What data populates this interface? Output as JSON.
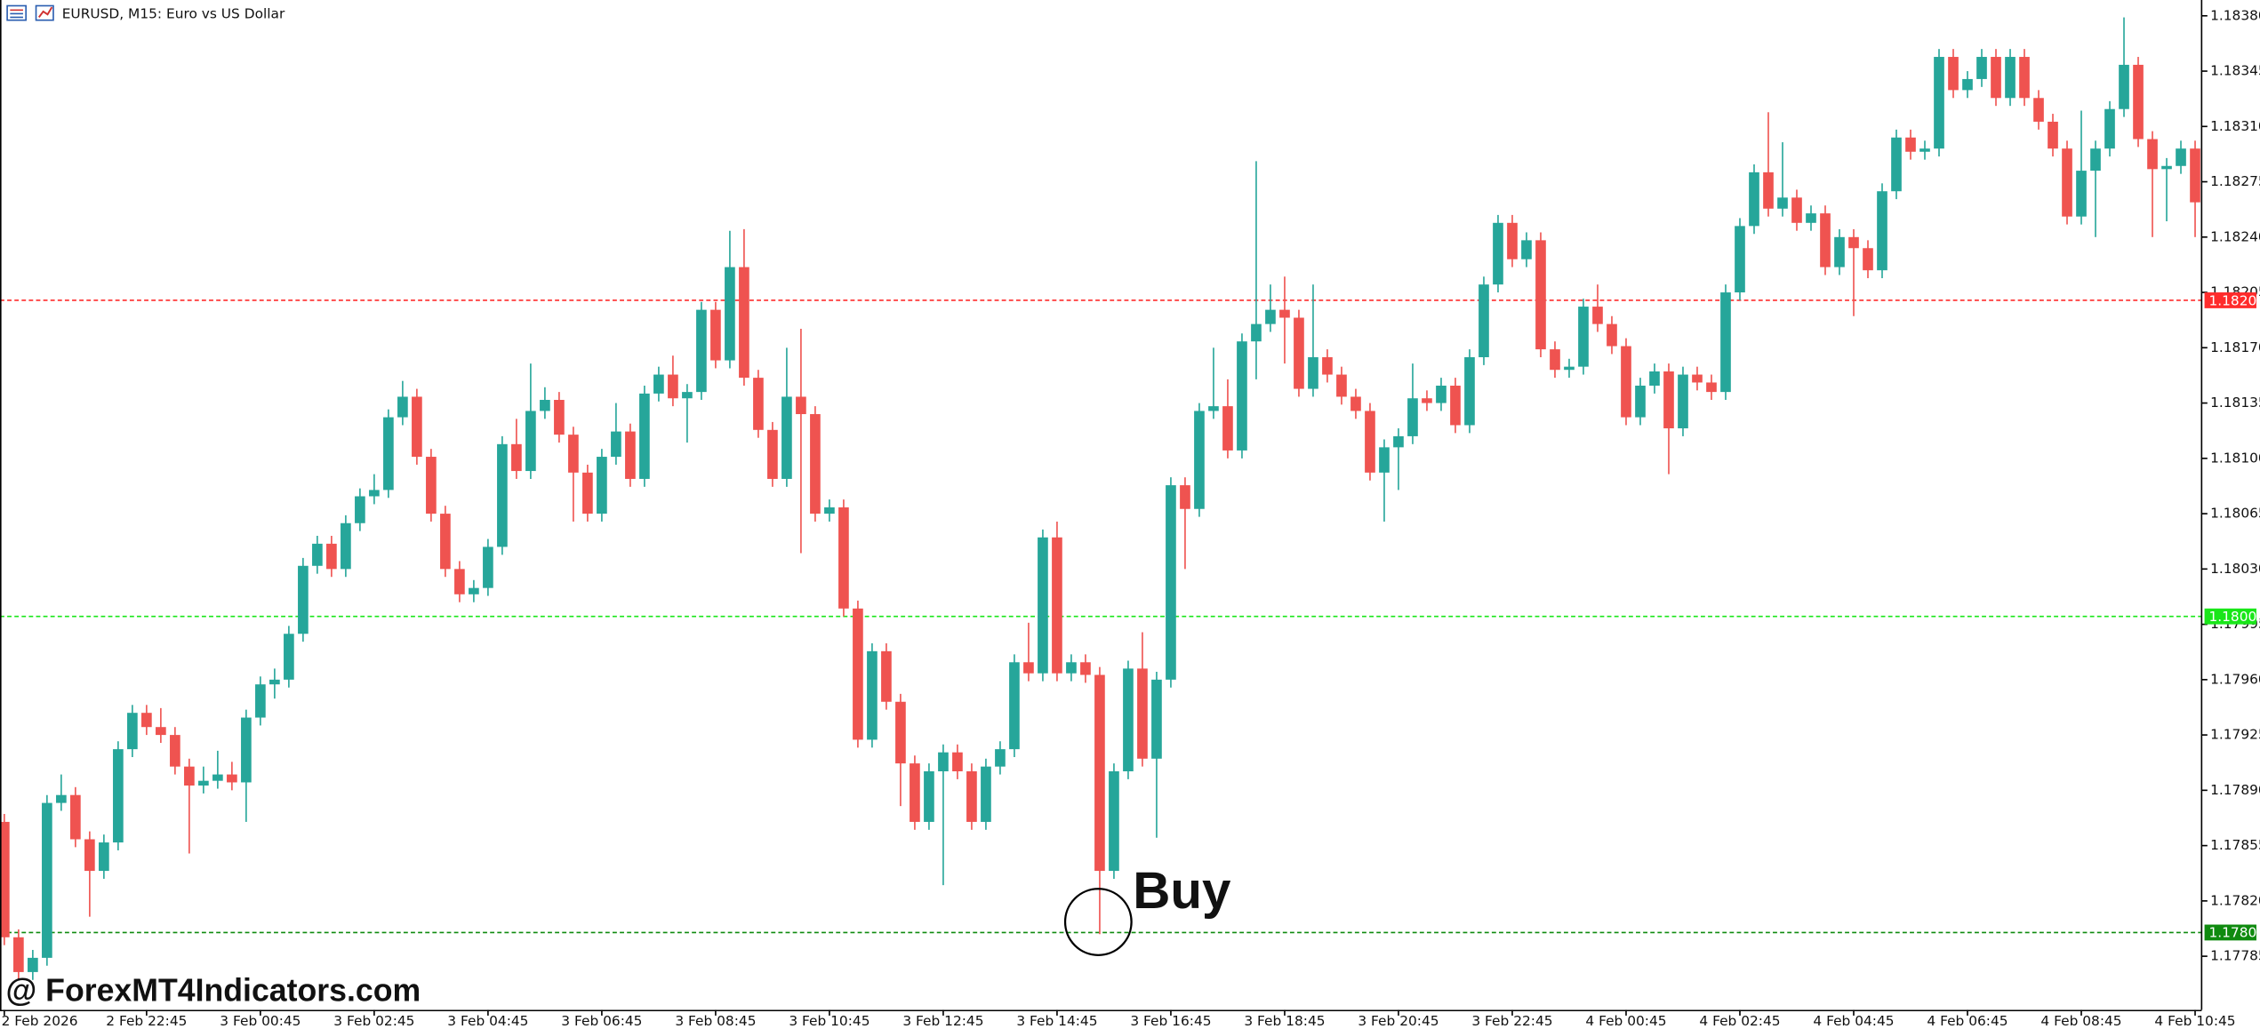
{
  "chart_data": {
    "type": "candlestick",
    "title": "EURUSD, M15:  Euro vs US Dollar",
    "annotation": "Buy",
    "watermark": "@ ForexMT4Indicators.com",
    "up_color": "#26a69a",
    "down_color": "#ef5350",
    "ylim": [
      1.17752,
      1.1839
    ],
    "yticks": [
      {
        "value": 1.1838,
        "label": "1.18380"
      },
      1.18345,
      {
        "value": 1.1831,
        "label": "1.18310"
      },
      1.18275,
      {
        "value": 1.1824,
        "label": "1.18240"
      },
      1.18205,
      {
        "value": 1.1817,
        "label": "1.18170"
      },
      1.18135,
      {
        "value": 1.181,
        "label": "1.18100"
      },
      1.18065,
      {
        "value": 1.1803,
        "label": "1.18030"
      },
      1.17995,
      {
        "value": 1.1796,
        "label": "1.17960"
      },
      1.17925,
      {
        "value": 1.1789,
        "label": "1.17890"
      },
      1.17855,
      {
        "value": 1.1782,
        "label": "1.17820"
      },
      1.17785
    ],
    "levels": [
      {
        "value": 1.182,
        "label": "1.18200",
        "color": "#ff2b2b"
      },
      {
        "value": 1.18,
        "label": "1.18000",
        "color": "#19e619"
      },
      {
        "value": 1.178,
        "label": "1.17800",
        "color": "#0f8a0f"
      }
    ],
    "categories": [
      "2 Feb 2026",
      null,
      null,
      null,
      null,
      null,
      null,
      null,
      null,
      null,
      "2 Feb 22:45",
      null,
      null,
      null,
      null,
      null,
      null,
      null,
      "3 Feb 00:45",
      null,
      null,
      null,
      null,
      null,
      null,
      null,
      "3 Feb 02:45",
      null,
      null,
      null,
      null,
      null,
      null,
      null,
      "3 Feb 04:45",
      null,
      null,
      null,
      null,
      null,
      null,
      null,
      "3 Feb 06:45",
      null,
      null,
      null,
      null,
      null,
      null,
      null,
      "3 Feb 08:45",
      null,
      null,
      null,
      null,
      null,
      null,
      null,
      "3 Feb 10:45",
      null,
      null,
      null,
      null,
      null,
      null,
      null,
      "3 Feb 12:45",
      null,
      null,
      null,
      null,
      null,
      null,
      null,
      "3 Feb 14:45",
      null,
      null,
      null,
      null,
      null,
      null,
      null,
      "3 Feb 16:45",
      null,
      null,
      null,
      null,
      null,
      null,
      null,
      "3 Feb 18:45",
      null,
      null,
      null,
      null,
      null,
      null,
      null,
      "3 Feb 20:45",
      null,
      null,
      null,
      null,
      null,
      null,
      null,
      "3 Feb 22:45",
      null,
      null,
      null,
      null,
      null,
      null,
      null,
      "4 Feb 00:45",
      null,
      null,
      null,
      null,
      null,
      null,
      null,
      "4 Feb 02:45",
      null,
      null,
      null,
      null,
      null,
      null,
      null,
      "4 Feb 04:45",
      null,
      null,
      null,
      null,
      null,
      null,
      null,
      "4 Feb 06:45",
      null,
      null,
      null,
      null,
      null,
      null,
      null,
      "4 Feb 08:45",
      null,
      null,
      null,
      null,
      null,
      null,
      null,
      "4 Feb 10:45"
    ],
    "open": [
      1.1787,
      1.17797,
      1.17775,
      1.17784,
      1.17882,
      1.17887,
      1.17859,
      1.17839,
      1.17857,
      1.17916,
      1.17939,
      1.1793,
      1.17925,
      1.17905,
      1.17893,
      1.17896,
      1.179,
      1.17895,
      1.17936,
      1.17957,
      1.1796,
      1.17989,
      1.18032,
      1.18046,
      1.1803,
      1.18059,
      1.18076,
      1.1808,
      1.18126,
      1.18139,
      1.18101,
      1.18065,
      1.1803,
      1.18014,
      1.18018,
      1.18044,
      1.18109,
      1.18092,
      1.1813,
      1.18137,
      1.18115,
      1.18091,
      1.18065,
      1.18101,
      1.18117,
      1.18087,
      1.18141,
      1.18153,
      1.18138,
      1.18142,
      1.18194,
      1.18162,
      1.18221,
      1.18151,
      1.18118,
      1.18087,
      1.18139,
      1.18128,
      1.18065,
      1.18069,
      1.18005,
      1.17922,
      1.17978,
      1.17946,
      1.17907,
      1.1787,
      1.17902,
      1.17914,
      1.17902,
      1.1787,
      1.17905,
      1.17916,
      1.17971,
      1.17964,
      1.1805,
      1.17964,
      1.17971,
      1.17963,
      1.17839,
      1.17902,
      1.17967,
      1.1791,
      1.1796,
      1.18083,
      1.18068,
      1.1813,
      1.18133,
      1.18105,
      1.18174,
      1.18185,
      1.18194,
      1.18189,
      1.18144,
      1.18164,
      1.18153,
      1.18139,
      1.1813,
      1.18091,
      1.18107,
      1.18114,
      1.18138,
      1.18135,
      1.18146,
      1.18121,
      1.18164,
      1.1821,
      1.18249,
      1.18226,
      1.18238,
      1.18169,
      1.18156,
      1.18158,
      1.18196,
      1.18185,
      1.18171,
      1.18126,
      1.18146,
      1.18155,
      1.18119,
      1.18153,
      1.18148,
      1.18142,
      1.18205,
      1.18247,
      1.18281,
      1.18258,
      1.18265,
      1.18249,
      1.18255,
      1.18221,
      1.1824,
      1.18233,
      1.18219,
      1.18269,
      1.18303,
      1.18294,
      1.18296,
      1.18354,
      1.18333,
      1.1834,
      1.18354,
      1.18328,
      1.18354,
      1.18328,
      1.18313,
      1.18296,
      1.18253,
      1.18282,
      1.18296,
      1.18321,
      1.18349,
      1.18302,
      1.18283,
      1.18285,
      1.18296
    ],
    "high": [
      1.17875,
      1.17802,
      1.17789,
      1.17887,
      1.179,
      1.17892,
      1.17864,
      1.17862,
      1.17921,
      1.17944,
      1.17944,
      1.17942,
      1.1793,
      1.1791,
      1.17905,
      1.17915,
      1.17908,
      1.17941,
      1.17962,
      1.17967,
      1.17994,
      1.18037,
      1.18051,
      1.18051,
      1.18064,
      1.18081,
      1.1809,
      1.18131,
      1.18149,
      1.18144,
      1.18106,
      1.1807,
      1.18035,
      1.18023,
      1.18049,
      1.18114,
      1.18125,
      1.1816,
      1.18145,
      1.18142,
      1.1812,
      1.18096,
      1.18106,
      1.18135,
      1.18122,
      1.18146,
      1.18158,
      1.18165,
      1.18147,
      1.18199,
      1.18199,
      1.18244,
      1.18245,
      1.18156,
      1.18123,
      1.1817,
      1.18182,
      1.18133,
      1.18074,
      1.18074,
      1.1801,
      1.17983,
      1.17983,
      1.17951,
      1.17912,
      1.17907,
      1.17919,
      1.17919,
      1.17907,
      1.1791,
      1.17921,
      1.17976,
      1.17996,
      1.18055,
      1.1806,
      1.17976,
      1.17976,
      1.17968,
      1.17907,
      1.17972,
      1.1799,
      1.17965,
      1.18088,
      1.18088,
      1.18135,
      1.1817,
      1.1815,
      1.18179,
      1.18288,
      1.1821,
      1.18215,
      1.18194,
      1.1821,
      1.18169,
      1.18158,
      1.18144,
      1.18135,
      1.18112,
      1.18119,
      1.1816,
      1.18143,
      1.18151,
      1.18151,
      1.18169,
      1.18215,
      1.18254,
      1.18254,
      1.18243,
      1.18243,
      1.18174,
      1.18163,
      1.18201,
      1.1821,
      1.1819,
      1.18176,
      1.18151,
      1.1816,
      1.1816,
      1.18158,
      1.18158,
      1.18153,
      1.1821,
      1.18252,
      1.18286,
      1.18319,
      1.183,
      1.1827,
      1.1826,
      1.1826,
      1.18245,
      1.18245,
      1.18238,
      1.18274,
      1.18308,
      1.18308,
      1.18301,
      1.18359,
      1.18359,
      1.18345,
      1.18359,
      1.18359,
      1.18359,
      1.18359,
      1.18333,
      1.18318,
      1.18301,
      1.1832,
      1.18301,
      1.18326,
      1.18379,
      1.18354,
      1.18307,
      1.1829,
      1.18301,
      1.18301
    ],
    "low": [
      1.17792,
      1.1777,
      1.1777,
      1.17779,
      1.17877,
      1.17854,
      1.1781,
      1.17834,
      1.17852,
      1.17911,
      1.17925,
      1.1792,
      1.179,
      1.1785,
      1.17888,
      1.17891,
      1.1789,
      1.1787,
      1.17931,
      1.17948,
      1.17955,
      1.17984,
      1.18027,
      1.18025,
      1.18025,
      1.18054,
      1.18071,
      1.18075,
      1.18121,
      1.18096,
      1.1806,
      1.18025,
      1.18009,
      1.18009,
      1.18013,
      1.18039,
      1.18087,
      1.18087,
      1.18125,
      1.1811,
      1.1806,
      1.1806,
      1.1806,
      1.18096,
      1.18082,
      1.18082,
      1.18136,
      1.18133,
      1.1811,
      1.18137,
      1.18157,
      1.18157,
      1.18146,
      1.18113,
      1.18082,
      1.18082,
      1.1804,
      1.1806,
      1.1806,
      1.18,
      1.17917,
      1.17917,
      1.17941,
      1.1788,
      1.17865,
      1.17865,
      1.1783,
      1.17897,
      1.17865,
      1.17865,
      1.179,
      1.17911,
      1.17959,
      1.17959,
      1.17959,
      1.17959,
      1.17958,
      1.17799,
      1.17834,
      1.17897,
      1.17905,
      1.1786,
      1.17955,
      1.1803,
      1.18063,
      1.18125,
      1.181,
      1.181,
      1.1815,
      1.1818,
      1.1816,
      1.18139,
      1.18139,
      1.18148,
      1.18134,
      1.18125,
      1.18086,
      1.1806,
      1.1808,
      1.18109,
      1.1813,
      1.1813,
      1.18116,
      1.18116,
      1.18159,
      1.18205,
      1.18221,
      1.18221,
      1.18164,
      1.18151,
      1.18151,
      1.18153,
      1.1818,
      1.18166,
      1.18121,
      1.18121,
      1.18141,
      1.1809,
      1.18114,
      1.18143,
      1.18137,
      1.18137,
      1.182,
      1.18242,
      1.18253,
      1.18253,
      1.18244,
      1.18244,
      1.18216,
      1.18216,
      1.1819,
      1.18214,
      1.18214,
      1.18264,
      1.18289,
      1.18289,
      1.18291,
      1.18328,
      1.18328,
      1.18335,
      1.18323,
      1.18323,
      1.18323,
      1.18308,
      1.18291,
      1.18248,
      1.18248,
      1.1824,
      1.18291,
      1.18316,
      1.18297,
      1.1824,
      1.1825,
      1.1828,
      1.1824
    ],
    "close": [
      1.17797,
      1.17775,
      1.17784,
      1.17882,
      1.17887,
      1.17859,
      1.17839,
      1.17857,
      1.17916,
      1.17939,
      1.1793,
      1.17925,
      1.17905,
      1.17893,
      1.17896,
      1.179,
      1.17895,
      1.17936,
      1.17957,
      1.1796,
      1.17989,
      1.18032,
      1.18046,
      1.1803,
      1.18059,
      1.18076,
      1.1808,
      1.18126,
      1.18139,
      1.18101,
      1.18065,
      1.1803,
      1.18014,
      1.18018,
      1.18044,
      1.18109,
      1.18092,
      1.1813,
      1.18137,
      1.18115,
      1.18091,
      1.18065,
      1.18101,
      1.18117,
      1.18087,
      1.18141,
      1.18153,
      1.18138,
      1.18142,
      1.18194,
      1.18162,
      1.18221,
      1.18151,
      1.18118,
      1.18087,
      1.18139,
      1.18128,
      1.18065,
      1.18069,
      1.18005,
      1.17922,
      1.17978,
      1.17946,
      1.17907,
      1.1787,
      1.17902,
      1.17914,
      1.17902,
      1.1787,
      1.17905,
      1.17916,
      1.17971,
      1.17964,
      1.1805,
      1.17964,
      1.17971,
      1.17963,
      1.17839,
      1.17902,
      1.17967,
      1.1791,
      1.1796,
      1.18083,
      1.18068,
      1.1813,
      1.18133,
      1.18105,
      1.18174,
      1.18185,
      1.18194,
      1.18189,
      1.18144,
      1.18164,
      1.18153,
      1.18139,
      1.1813,
      1.18091,
      1.18107,
      1.18114,
      1.18138,
      1.18135,
      1.18146,
      1.18121,
      1.18164,
      1.1821,
      1.18249,
      1.18226,
      1.18238,
      1.18169,
      1.18156,
      1.18158,
      1.18196,
      1.18185,
      1.18171,
      1.18126,
      1.18146,
      1.18155,
      1.18119,
      1.18153,
      1.18148,
      1.18142,
      1.18205,
      1.18247,
      1.18281,
      1.18258,
      1.18265,
      1.18249,
      1.18255,
      1.18221,
      1.1824,
      1.18233,
      1.18219,
      1.18269,
      1.18303,
      1.18294,
      1.18296,
      1.18354,
      1.18333,
      1.1834,
      1.18354,
      1.18328,
      1.18354,
      1.18328,
      1.18313,
      1.18296,
      1.18253,
      1.18282,
      1.18296,
      1.18321,
      1.18349,
      1.18302,
      1.18283,
      1.18285,
      1.18296,
      1.18262
    ]
  }
}
